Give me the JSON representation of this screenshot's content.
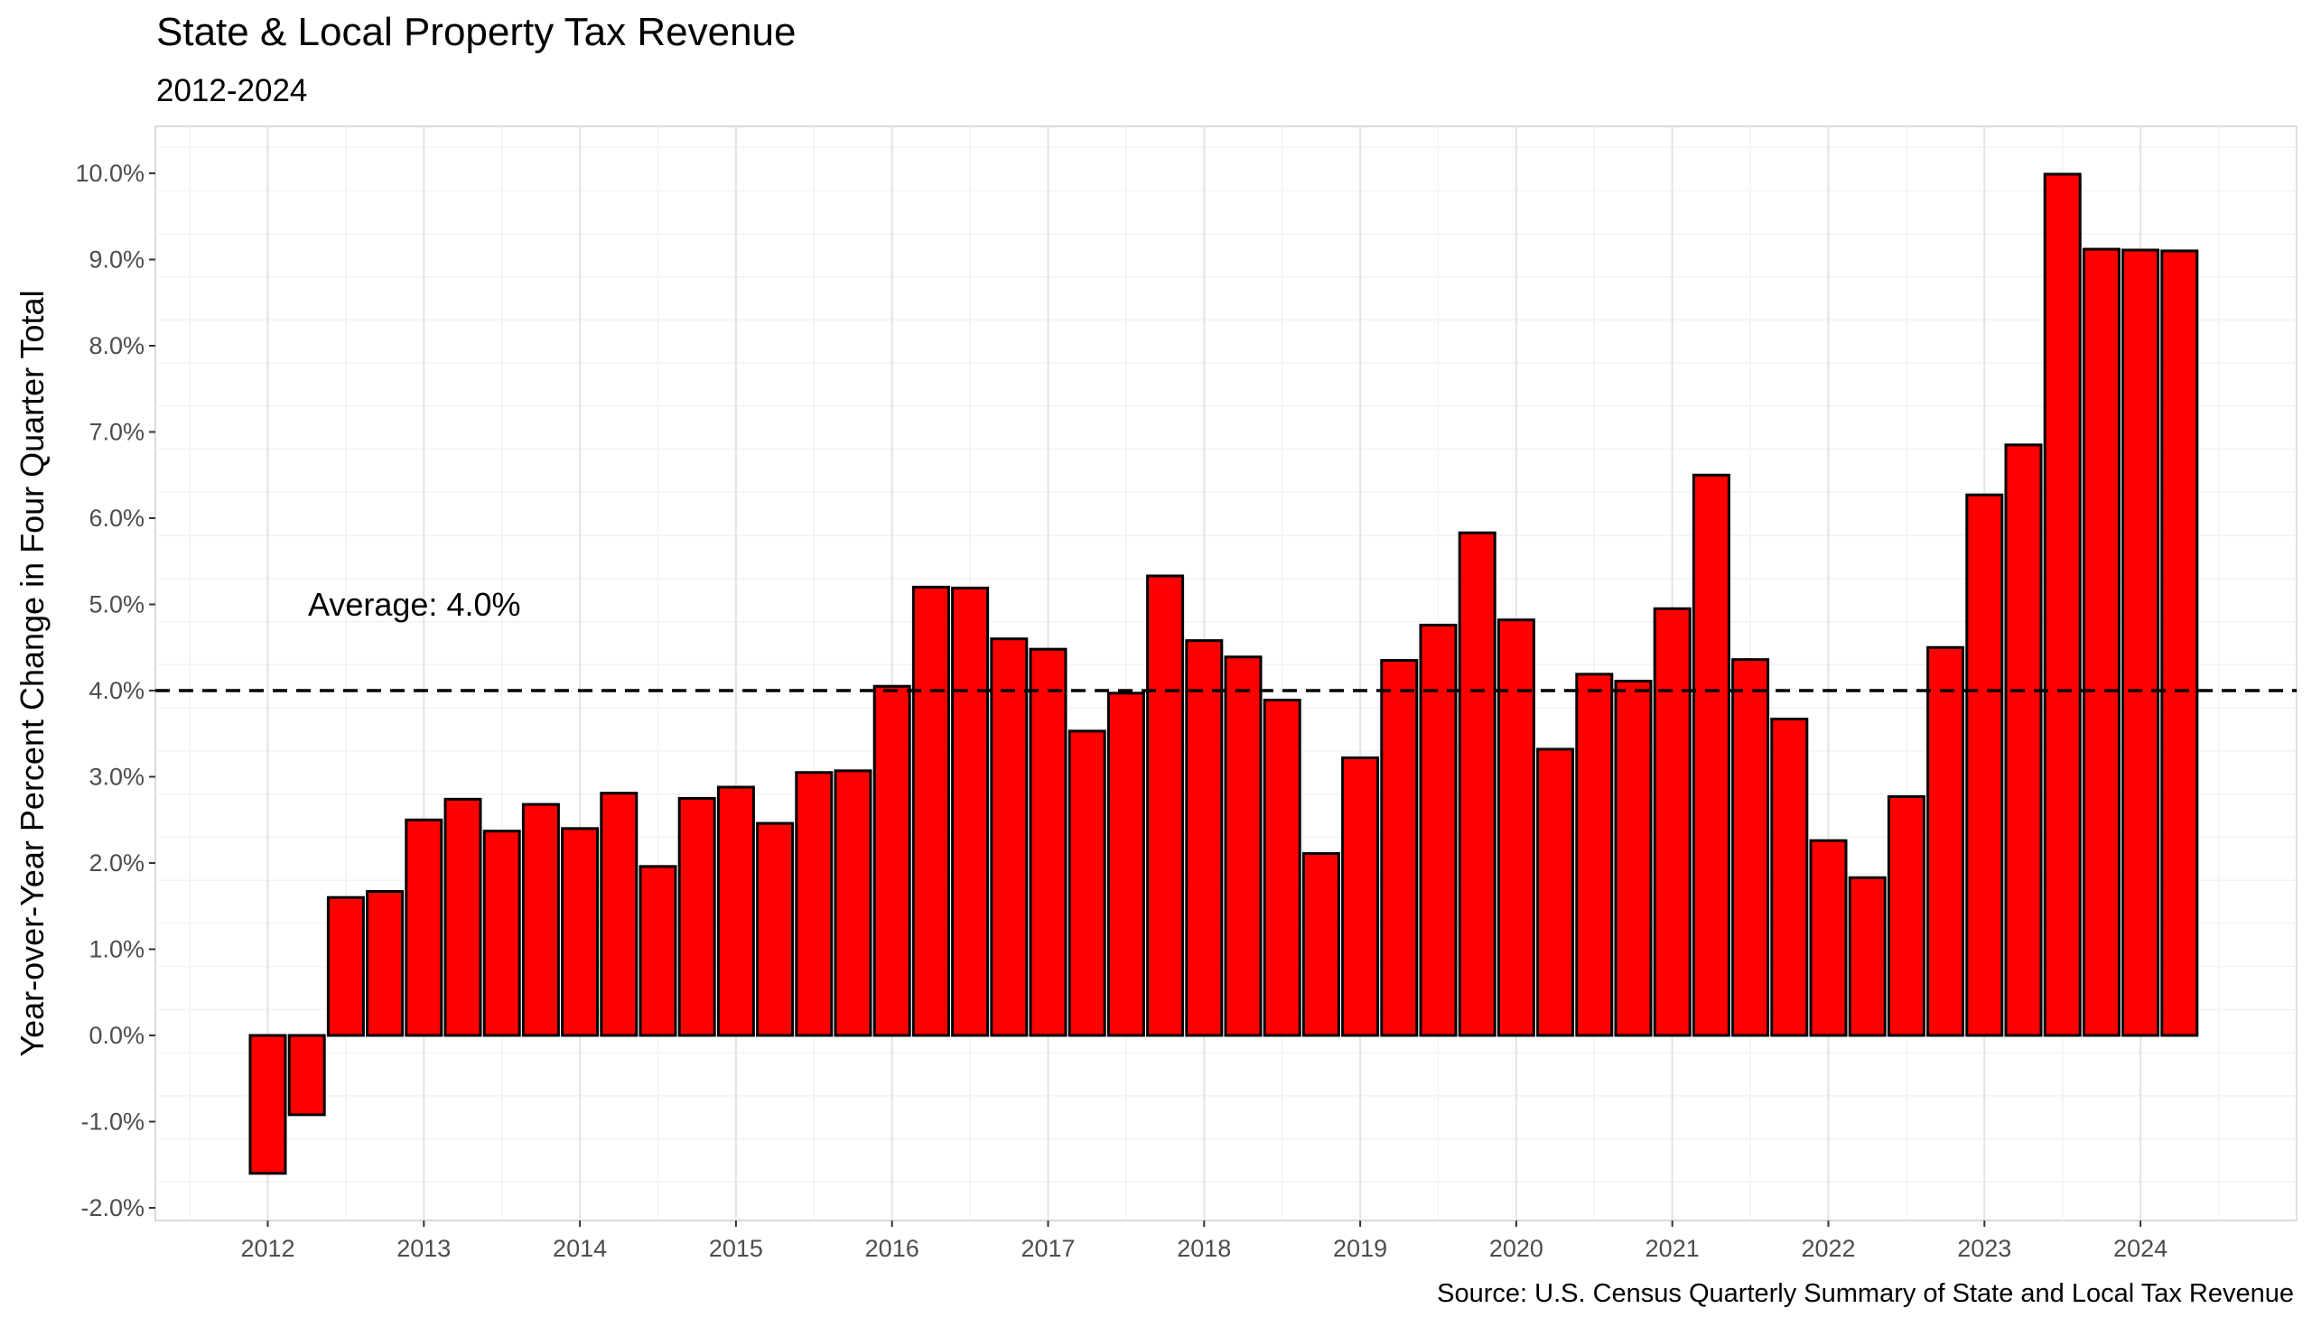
{
  "chart_data": {
    "type": "bar",
    "title": "State & Local Property Tax Revenue",
    "subtitle": "2012-2024",
    "xlabel": "",
    "ylabel": "Year-over-Year Percent Change in Four Quarter Total",
    "caption": "Source: U.S. Census Quarterly Summary of State and Local Tax Revenue",
    "annotation": "Average: 4.0%",
    "average": 4.0,
    "ylim": [
      -2.2,
      10.5
    ],
    "y_ticks": [
      -2.0,
      -1.0,
      0.0,
      1.0,
      2.0,
      3.0,
      4.0,
      5.0,
      6.0,
      7.0,
      8.0,
      9.0,
      10.0
    ],
    "y_tick_labels": [
      "-2.0%",
      "-1.0%",
      "0.0%",
      "1.0%",
      "2.0%",
      "3.0%",
      "4.0%",
      "5.0%",
      "6.0%",
      "7.0%",
      "8.0%",
      "9.0%",
      "10.0%"
    ],
    "x_ticks": [
      "2012",
      "2013",
      "2014",
      "2015",
      "2016",
      "2017",
      "2018",
      "2019",
      "2020",
      "2021",
      "2022",
      "2023",
      "2024"
    ],
    "start_year": 2012,
    "start_quarter": 1,
    "bar_color": "#ff0000",
    "bar_outline": "#000000",
    "grid": true,
    "legend": "none",
    "values": [
      -1.6,
      -0.92,
      1.6,
      1.67,
      2.5,
      2.74,
      2.37,
      2.68,
      2.4,
      2.81,
      1.96,
      2.75,
      2.88,
      2.46,
      3.05,
      3.07,
      4.05,
      5.2,
      5.19,
      4.6,
      4.48,
      3.53,
      3.97,
      5.33,
      4.58,
      4.39,
      3.89,
      2.11,
      3.22,
      4.35,
      4.76,
      5.83,
      4.82,
      3.32,
      4.19,
      4.11,
      4.95,
      6.5,
      4.36,
      3.67,
      2.26,
      1.83,
      2.77,
      4.5,
      6.27,
      6.85,
      9.99,
      9.12,
      9.11,
      9.1
    ]
  }
}
